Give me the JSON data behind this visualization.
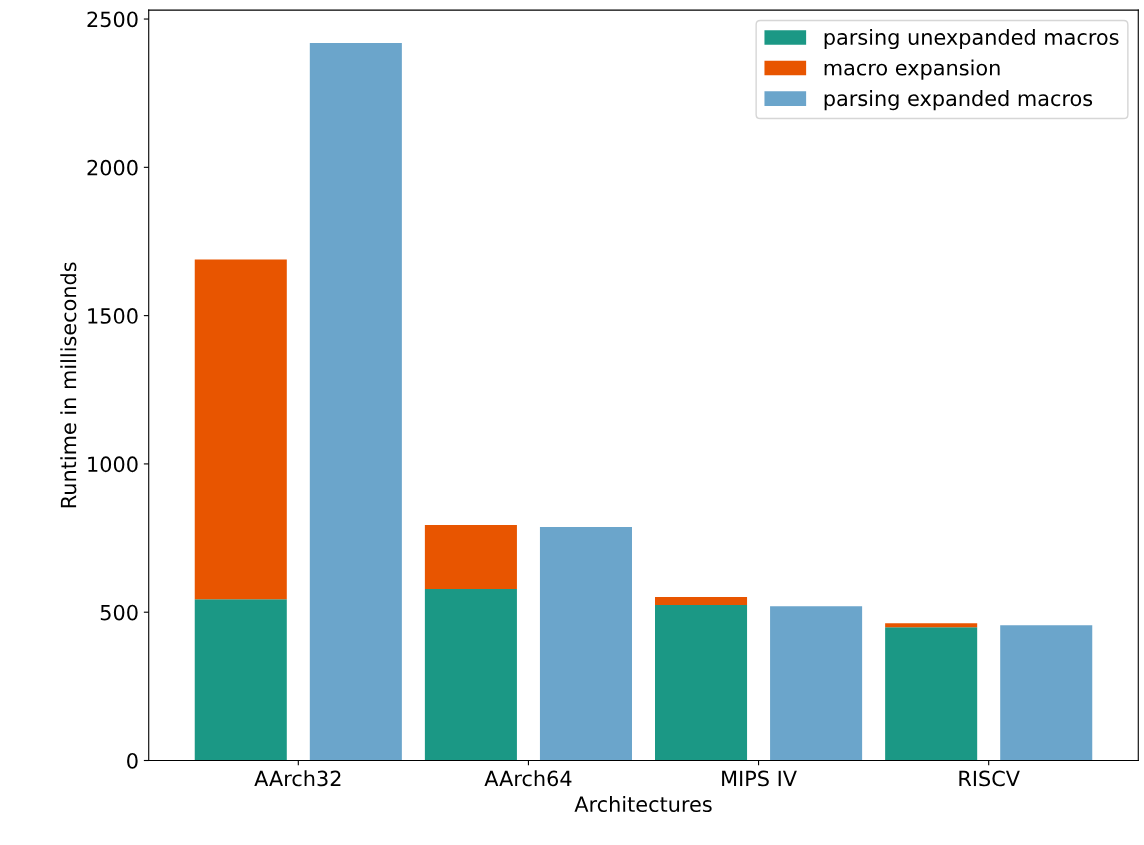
{
  "chart_data": {
    "type": "bar",
    "xlabel": "Architectures",
    "ylabel": "Runtime in milliseconds",
    "categories": [
      "AArch32",
      null,
      "AArch64",
      null,
      "MIPS IV",
      null,
      "RISCV",
      null
    ],
    "stacked": true,
    "series": [
      {
        "name": "parsing unexpanded macros",
        "color": "#1b9885",
        "values": [
          544,
          null,
          578,
          null,
          524,
          null,
          449,
          null
        ]
      },
      {
        "name": "macro expansion",
        "color": "#e85500",
        "values": [
          1145,
          null,
          216,
          null,
          27,
          null,
          14,
          null
        ]
      },
      {
        "name": "parsing expanded macros",
        "color": "#6ba5cb",
        "values": [
          null,
          2419,
          null,
          787,
          null,
          520,
          null,
          456
        ]
      }
    ],
    "ylim": [
      0,
      2530
    ],
    "yticks": [
      0,
      500,
      1000,
      1500,
      2000,
      2500
    ],
    "legend": "top right"
  }
}
